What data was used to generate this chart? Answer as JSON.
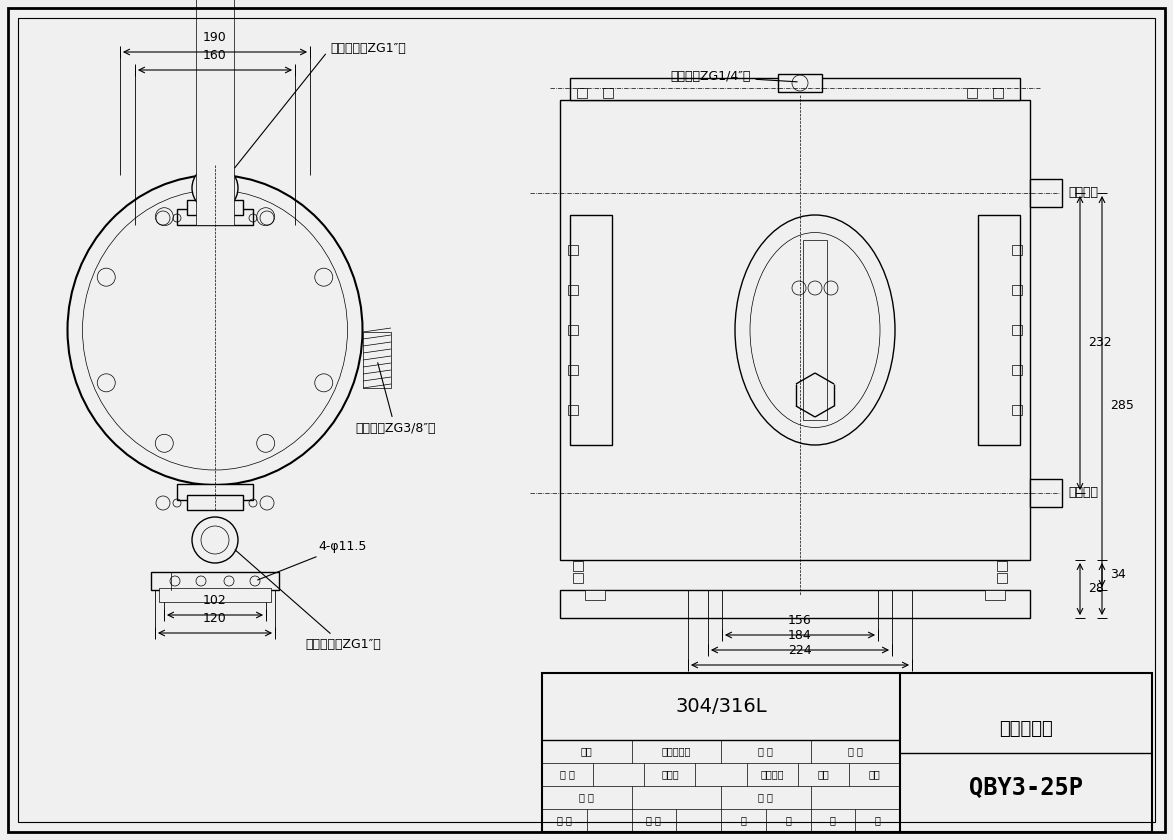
{
  "bg_color": "#f0f0f0",
  "line_color": "#000000",
  "model_text": "QBY3-25P",
  "drawing_title": "安装尺寸图",
  "material_text": "304/316L",
  "annotations_left": {
    "outlet_label": "物料出口（ZG1″）",
    "inlet_label": "物料进口（ZG1″）",
    "muffler_label": "消声器（ZG3/8″）",
    "dim_holes": "4-φ11.5"
  },
  "annotations_right": {
    "air_inlet_label": "进气口（ZG1/4″）",
    "outlet_side": "（出口）",
    "inlet_side": "（进口）"
  },
  "table_rows": [
    [
      "标记",
      "更改文件号",
      "签 字",
      "日 期"
    ],
    [
      "设 计",
      "",
      "标准化",
      "",
      "图样标记",
      "重量",
      "比例"
    ],
    [
      "审 核",
      "",
      "批 准",
      ""
    ],
    [
      "工 艺",
      "",
      "日 期",
      "",
      "共",
      "页",
      "第",
      "页"
    ]
  ]
}
